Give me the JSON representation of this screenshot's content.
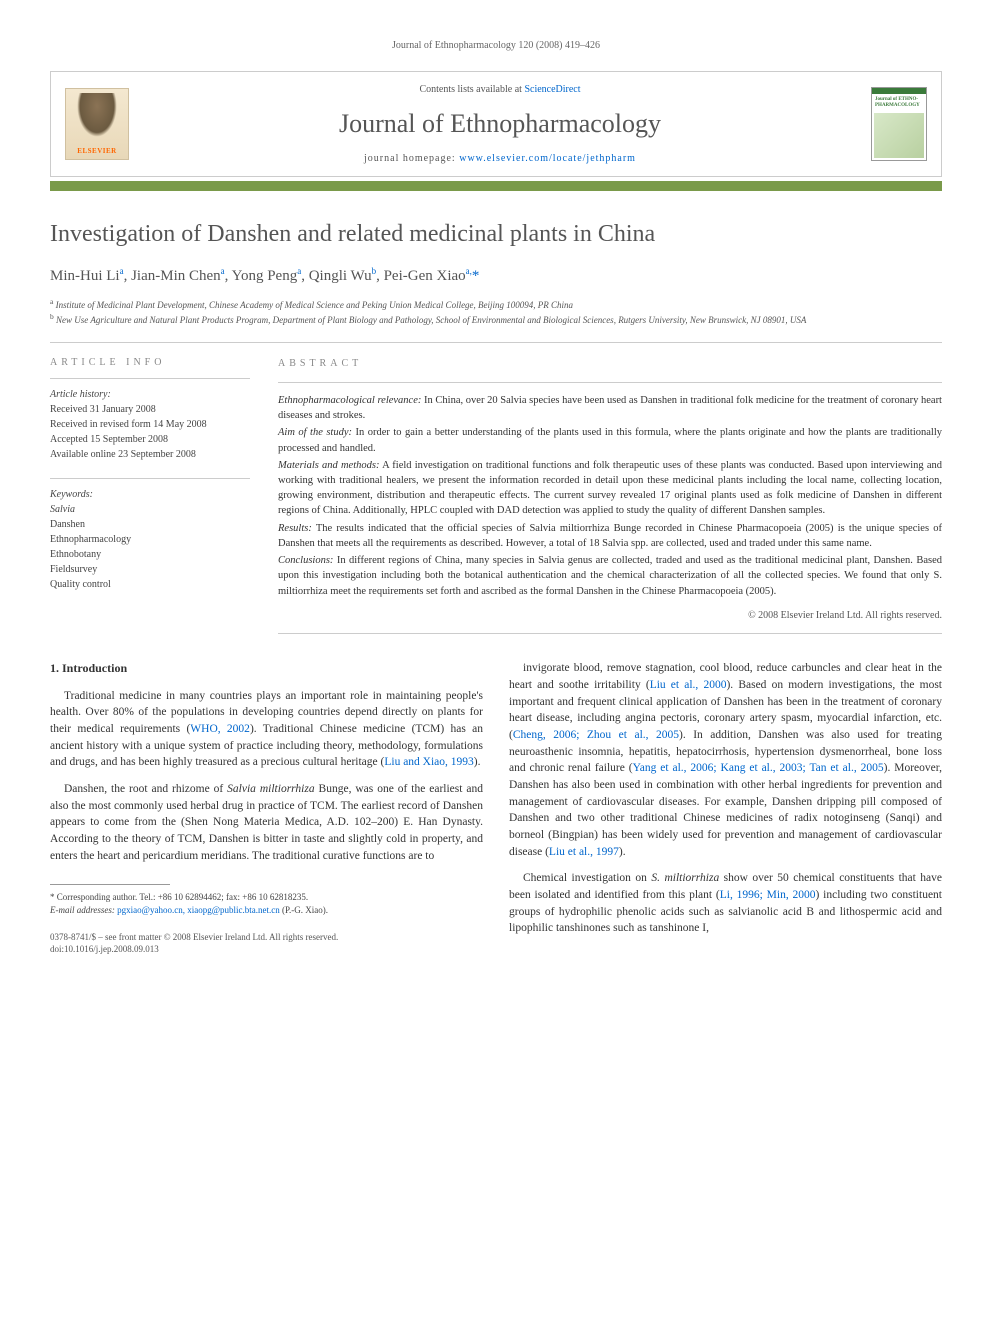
{
  "running_header": "Journal of Ethnopharmacology 120 (2008) 419–426",
  "masthead": {
    "elsevier_label": "ELSEVIER",
    "contents_prefix": "Contents lists available at ",
    "contents_link": "ScienceDirect",
    "journal_name": "Journal of Ethnopharmacology",
    "homepage_prefix": "journal homepage: ",
    "homepage_url": "www.elsevier.com/locate/jethpharm",
    "cover_title": "Journal of ETHNO-PHARMACOLOGY"
  },
  "colors": {
    "bar": "#7a9a4a",
    "link": "#0066cc",
    "heading": "#555555",
    "elsevier_orange": "#ff6600",
    "cover_green": "#3a7a3a"
  },
  "article": {
    "title": "Investigation of Danshen and related medicinal plants in China",
    "authors_html": "Min-Hui Li<sup>a</sup>, Jian-Min Chen<sup>a</sup>, Yong Peng<sup>a</sup>, Qingli Wu<sup>b</sup>, Pei-Gen Xiao<sup>a,</sup><span class='corr'>*</span>",
    "affiliations": {
      "a": "Institute of Medicinal Plant Development, Chinese Academy of Medical Science and Peking Union Medical College, Beijing 100094, PR China",
      "b": "New Use Agriculture and Natural Plant Products Program, Department of Plant Biology and Pathology, School of Environmental and Biological Sciences, Rutgers University, New Brunswick, NJ 08901, USA"
    }
  },
  "article_info": {
    "section_label": "ARTICLE INFO",
    "history_heading": "Article history:",
    "history": [
      "Received 31 January 2008",
      "Received in revised form 14 May 2008",
      "Accepted 15 September 2008",
      "Available online 23 September 2008"
    ],
    "keywords_heading": "Keywords:",
    "keywords": [
      "Salvia",
      "Danshen",
      "Ethnopharmacology",
      "Ethnobotany",
      "Fieldsurvey",
      "Quality control"
    ]
  },
  "abstract": {
    "section_label": "ABSTRACT",
    "paras": [
      {
        "label": "Ethnopharmacological relevance:",
        "text": " In China, over 20 Salvia species have been used as Danshen in traditional folk medicine for the treatment of coronary heart diseases and strokes."
      },
      {
        "label": "Aim of the study:",
        "text": " In order to gain a better understanding of the plants used in this formula, where the plants originate and how the plants are traditionally processed and handled."
      },
      {
        "label": "Materials and methods:",
        "text": " A field investigation on traditional functions and folk therapeutic uses of these plants was conducted. Based upon interviewing and working with traditional healers, we present the information recorded in detail upon these medicinal plants including the local name, collecting location, growing environment, distribution and therapeutic effects. The current survey revealed 17 original plants used as folk medicine of Danshen in different regions of China. Additionally, HPLC coupled with DAD detection was applied to study the quality of different Danshen samples."
      },
      {
        "label": "Results:",
        "text": " The results indicated that the official species of Salvia miltiorrhiza Bunge recorded in Chinese Pharmacopoeia (2005) is the unique species of Danshen that meets all the requirements as described. However, a total of 18 Salvia spp. are collected, used and traded under this same name."
      },
      {
        "label": "Conclusions:",
        "text": " In different regions of China, many species in Salvia genus are collected, traded and used as the traditional medicinal plant, Danshen. Based upon this investigation including both the botanical authentication and the chemical characterization of all the collected species. We found that only S. miltiorrhiza meet the requirements set forth and ascribed as the formal Danshen in the Chinese Pharmacopoeia (2005)."
      }
    ],
    "copyright": "© 2008 Elsevier Ireland Ltd. All rights reserved."
  },
  "body": {
    "intro_heading": "1. Introduction",
    "left_paras": [
      "Traditional medicine in many countries plays an important role in maintaining people's health. Over 80% of the populations in developing countries depend directly on plants for their medical requirements (<span class='cite'>WHO, 2002</span>). Traditional Chinese medicine (TCM) has an ancient history with a unique system of practice including theory, methodology, formulations and drugs, and has been highly treasured as a precious cultural heritage (<span class='cite'>Liu and Xiao, 1993</span>).",
      "Danshen, the root and rhizome of <span class='ital'>Salvia miltiorrhiza</span> Bunge, was one of the earliest and also the most commonly used herbal drug in practice of TCM. The earliest record of Danshen appears to come from the (Shen Nong Materia Medica, A.D. 102–200) E. Han Dynasty. According to the theory of TCM, Danshen is bitter in taste and slightly cold in property, and enters the heart and pericardium meridians. The traditional curative functions are to"
    ],
    "right_paras": [
      "invigorate blood, remove stagnation, cool blood, reduce carbuncles and clear heat in the heart and soothe irritability (<span class='cite'>Liu et al., 2000</span>). Based on modern investigations, the most important and frequent clinical application of Danshen has been in the treatment of coronary heart disease, including angina pectoris, coronary artery spasm, myocardial infarction, etc. (<span class='cite'>Cheng, 2006; Zhou et al., 2005</span>). In addition, Danshen was also used for treating neuroasthenic insomnia, hepatitis, hepatocirrhosis, hypertension dysmenorrheal, bone loss and chronic renal failure (<span class='cite'>Yang et al., 2006; Kang et al., 2003; Tan et al., 2005</span>). Moreover, Danshen has also been used in combination with other herbal ingredients for prevention and management of cardiovascular diseases. For example, Danshen dripping pill composed of Danshen and two other traditional Chinese medicines of radix notoginseng (Sanqi) and borneol (Bingpian) has been widely used for prevention and management of cardiovascular disease (<span class='cite'>Liu et al., 1997</span>).",
      "Chemical investigation on <span class='ital'>S. miltiorrhiza</span> show over 50 chemical constituents that have been isolated and identified from this plant (<span class='cite'>Li, 1996; Min, 2000</span>) including two constituent groups of hydrophilic phenolic acids such as salvianolic acid B and lithospermic acid and lipophilic tanshinones such as tanshinone I,"
    ]
  },
  "footnotes": {
    "corr_label": "* Corresponding author. Tel.: +86 10 62894462; fax: +86 10 62818235.",
    "email_label": "E-mail addresses:",
    "emails": "pgxiao@yahoo.cn, xiaopg@public.bta.net.cn",
    "email_attribution": "(P.-G. Xiao)."
  },
  "bottom": {
    "issn_line": "0378-8741/$ – see front matter © 2008 Elsevier Ireland Ltd. All rights reserved.",
    "doi_line": "doi:10.1016/j.jep.2008.09.013"
  }
}
